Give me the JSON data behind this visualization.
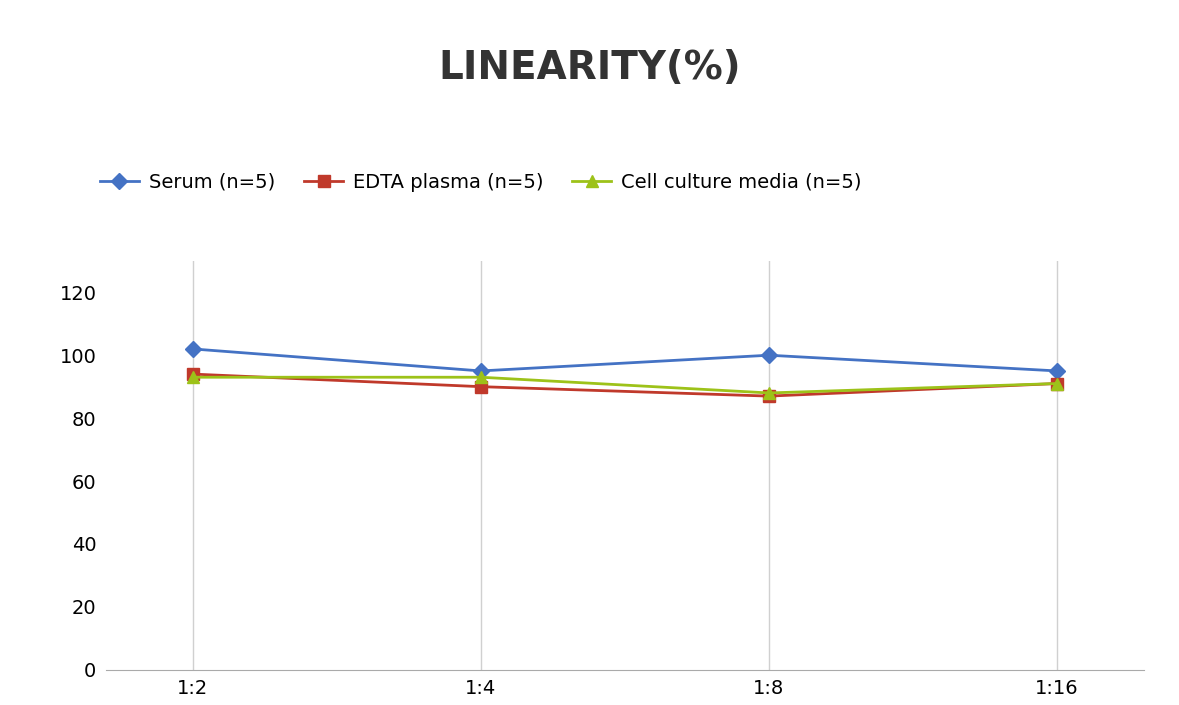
{
  "title": "LINEARITY(%)",
  "x_labels": [
    "1:2",
    "1:4",
    "1:8",
    "1:16"
  ],
  "series": [
    {
      "label": "Serum (n=5)",
      "values": [
        102,
        95,
        100,
        95
      ],
      "color": "#4472C4",
      "marker": "D",
      "markersize": 8
    },
    {
      "label": "EDTA plasma (n=5)",
      "values": [
        94,
        90,
        87,
        91
      ],
      "color": "#C0392B",
      "marker": "s",
      "markersize": 8
    },
    {
      "label": "Cell culture media (n=5)",
      "values": [
        93,
        93,
        88,
        91
      ],
      "color": "#9DC219",
      "marker": "^",
      "markersize": 8
    }
  ],
  "ylim": [
    0,
    130
  ],
  "yticks": [
    0,
    20,
    40,
    60,
    80,
    100,
    120
  ],
  "title_fontsize": 28,
  "legend_fontsize": 14,
  "tick_fontsize": 14,
  "background_color": "#ffffff",
  "grid_color": "#d0d0d0",
  "linewidth": 2.0
}
